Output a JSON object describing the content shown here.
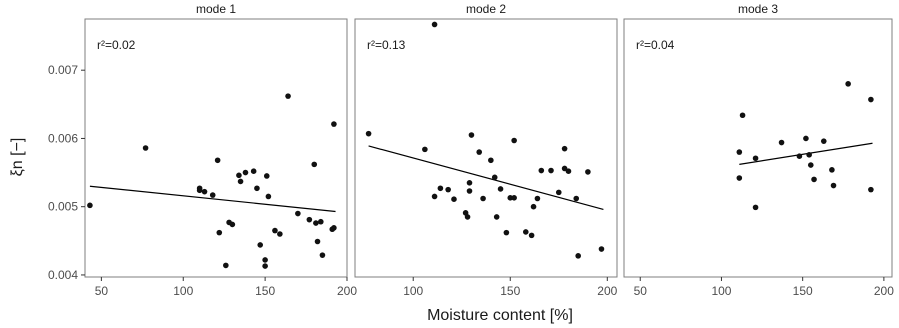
{
  "chart_data": {
    "type": "scatter",
    "xlabel": "Moisture content [%]",
    "ylabel": "ξn  [−]",
    "xlim": [
      40,
      200
    ],
    "ylim": [
      0.00397,
      0.00775
    ],
    "xticks": [
      50,
      100,
      150,
      200
    ],
    "yticks": [
      0.004,
      0.005,
      0.006,
      0.007
    ],
    "ytick_labels": [
      "0.004",
      "0.005",
      "0.006",
      "0.007"
    ],
    "grid": false,
    "colors": {
      "points": "#111111",
      "line": "#000000",
      "panel_border": "#7f7f7f"
    },
    "panels": [
      {
        "title": "mode 1",
        "annotation": "r²=0.02",
        "xlim": [
          40,
          200
        ],
        "trend": {
          "x": [
            43,
            193
          ],
          "y": [
            0.0053,
            0.00493
          ]
        },
        "points": [
          [
            43,
            0.00502
          ],
          [
            77,
            0.00586
          ],
          [
            110,
            0.00527
          ],
          [
            110,
            0.00524
          ],
          [
            113,
            0.00522
          ],
          [
            118,
            0.00517
          ],
          [
            121,
            0.00568
          ],
          [
            122,
            0.00462
          ],
          [
            126,
            0.00414
          ],
          [
            128,
            0.00477
          ],
          [
            130,
            0.00474
          ],
          [
            134,
            0.00546
          ],
          [
            135,
            0.00537
          ],
          [
            138,
            0.0055
          ],
          [
            143,
            0.00552
          ],
          [
            145,
            0.00527
          ],
          [
            147,
            0.00444
          ],
          [
            150,
            0.00422
          ],
          [
            150,
            0.00413
          ],
          [
            151,
            0.00545
          ],
          [
            152,
            0.00515
          ],
          [
            156,
            0.00465
          ],
          [
            159,
            0.0046
          ],
          [
            164,
            0.00662
          ],
          [
            170,
            0.0049
          ],
          [
            177,
            0.00481
          ],
          [
            180,
            0.00562
          ],
          [
            181,
            0.00476
          ],
          [
            182,
            0.00449
          ],
          [
            184,
            0.00478
          ],
          [
            185,
            0.00429
          ],
          [
            191,
            0.00467
          ],
          [
            192,
            0.00621
          ],
          [
            192,
            0.00469
          ]
        ]
      },
      {
        "title": "mode 2",
        "annotation": "r²=0.13",
        "xlim": [
          70,
          205
        ],
        "trend": {
          "x": [
            77,
            198
          ],
          "y": [
            0.00589,
            0.00496
          ]
        },
        "points": [
          [
            77,
            0.00607
          ],
          [
            106,
            0.00584
          ],
          [
            111,
            0.00767
          ],
          [
            111,
            0.00515
          ],
          [
            114,
            0.00527
          ],
          [
            118,
            0.00525
          ],
          [
            121,
            0.00511
          ],
          [
            127,
            0.00491
          ],
          [
            128,
            0.00485
          ],
          [
            129,
            0.00535
          ],
          [
            129,
            0.00523
          ],
          [
            130,
            0.00605
          ],
          [
            134,
            0.0058
          ],
          [
            136,
            0.00512
          ],
          [
            140,
            0.00568
          ],
          [
            142,
            0.00543
          ],
          [
            143,
            0.00485
          ],
          [
            145,
            0.00526
          ],
          [
            148,
            0.00462
          ],
          [
            150,
            0.00513
          ],
          [
            152,
            0.00513
          ],
          [
            152,
            0.00597
          ],
          [
            158,
            0.00463
          ],
          [
            161,
            0.00458
          ],
          [
            162,
            0.005
          ],
          [
            164,
            0.00512
          ],
          [
            166,
            0.00553
          ],
          [
            171,
            0.00553
          ],
          [
            175,
            0.00521
          ],
          [
            178,
            0.00585
          ],
          [
            178,
            0.00556
          ],
          [
            180,
            0.00552
          ],
          [
            184,
            0.00512
          ],
          [
            185,
            0.00428
          ],
          [
            190,
            0.00551
          ],
          [
            197,
            0.00438
          ]
        ]
      },
      {
        "title": "mode 3",
        "annotation": "r²=0.04",
        "xlim": [
          40,
          205
        ],
        "trend": {
          "x": [
            111,
            193
          ],
          "y": [
            0.00562,
            0.00593
          ]
        },
        "points": [
          [
            111,
            0.0058
          ],
          [
            111,
            0.00542
          ],
          [
            113,
            0.00634
          ],
          [
            121,
            0.00571
          ],
          [
            121,
            0.00499
          ],
          [
            137,
            0.00594
          ],
          [
            148,
            0.00574
          ],
          [
            152,
            0.006
          ],
          [
            154,
            0.00576
          ],
          [
            155,
            0.00561
          ],
          [
            157,
            0.0054
          ],
          [
            163,
            0.00596
          ],
          [
            168,
            0.00554
          ],
          [
            169,
            0.00531
          ],
          [
            178,
            0.0068
          ],
          [
            192,
            0.00657
          ],
          [
            192,
            0.00525
          ]
        ]
      }
    ]
  }
}
